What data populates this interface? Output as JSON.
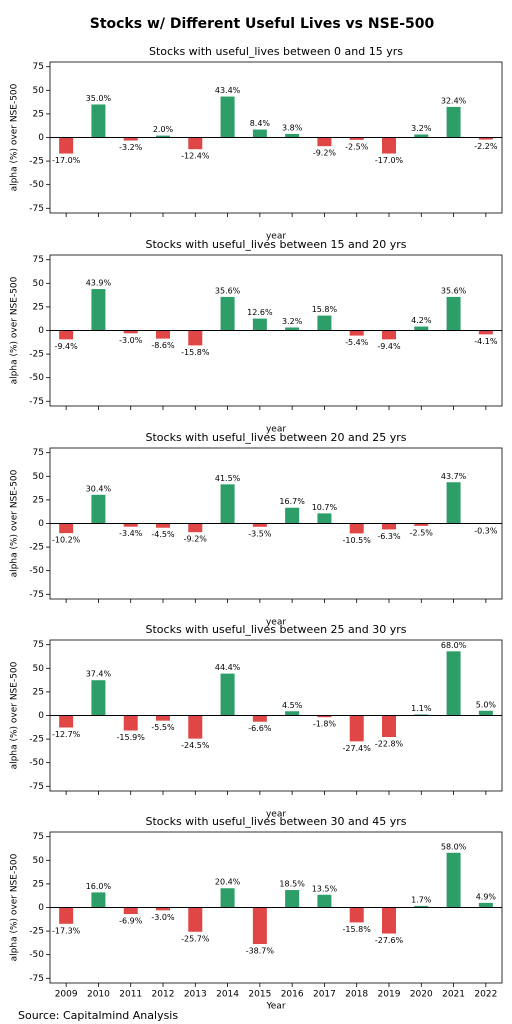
{
  "title": "Stocks w/ Different Useful Lives vs NSE-500",
  "source": "Source: Capitalmind Analysis",
  "chart_data": [
    {
      "type": "bar",
      "title": "Stocks with useful_lives between 0 and 15 yrs",
      "xlabel": "year",
      "ylabel": "alpha (%) over NSE-500",
      "categories": [
        null,
        null,
        null,
        null,
        null,
        null,
        null,
        null,
        null,
        null,
        null,
        null,
        null,
        null
      ],
      "values": [
        -17.0,
        35.0,
        -3.2,
        2.0,
        -12.4,
        43.4,
        8.4,
        3.8,
        -9.2,
        -2.5,
        -17.0,
        3.2,
        32.4,
        -2.2
      ],
      "value_labels": [
        "-17.0%",
        "35.0%",
        "-3.2%",
        "2.0%",
        "-12.4%",
        "43.4%",
        "8.4%",
        "3.8%",
        "-9.2%",
        "-2.5%",
        "-17.0%",
        "3.2%",
        "32.4%",
        "-2.2%"
      ],
      "positive_color": "#2e9e68",
      "negative_color": "#e04646",
      "ylim": [
        -80,
        80
      ],
      "yticks": [
        -75,
        -50,
        -25,
        0,
        25,
        50,
        75
      ]
    },
    {
      "type": "bar",
      "title": "Stocks with useful_lives between 15 and 20 yrs",
      "xlabel": "year",
      "ylabel": "alpha (%) over NSE-500",
      "categories": [
        null,
        null,
        null,
        null,
        null,
        null,
        null,
        null,
        null,
        null,
        null,
        null,
        null,
        null
      ],
      "values": [
        -9.4,
        43.9,
        -3.0,
        -8.6,
        -15.8,
        35.6,
        12.6,
        3.2,
        15.8,
        -5.4,
        -9.4,
        4.2,
        35.6,
        -4.1
      ],
      "value_labels": [
        "-9.4%",
        "43.9%",
        "-3.0%",
        "-8.6%",
        "-15.8%",
        "35.6%",
        "12.6%",
        "3.2%",
        "15.8%",
        "-5.4%",
        "-9.4%",
        "4.2%",
        "35.6%",
        "-4.1%"
      ],
      "positive_color": "#2e9e68",
      "negative_color": "#e04646",
      "ylim": [
        -80,
        80
      ],
      "yticks": [
        -75,
        -50,
        -25,
        0,
        25,
        50,
        75
      ]
    },
    {
      "type": "bar",
      "title": "Stocks with useful_lives between 20 and 25 yrs",
      "xlabel": "year",
      "ylabel": "alpha (%) over NSE-500",
      "categories": [
        null,
        null,
        null,
        null,
        null,
        null,
        null,
        null,
        null,
        null,
        null,
        null,
        null,
        null
      ],
      "values": [
        -10.2,
        30.4,
        -3.4,
        -4.5,
        -9.2,
        41.5,
        -3.5,
        16.7,
        10.7,
        -10.5,
        -6.3,
        -2.5,
        43.7,
        -0.3
      ],
      "value_labels": [
        "-10.2%",
        "30.4%",
        "-3.4%",
        "-4.5%",
        "-9.2%",
        "41.5%",
        "-3.5%",
        "16.7%",
        "10.7%",
        "-10.5%",
        "-6.3%",
        "-2.5%",
        "43.7%",
        "-0.3%"
      ],
      "positive_color": "#2e9e68",
      "negative_color": "#e04646",
      "ylim": [
        -80,
        80
      ],
      "yticks": [
        -75,
        -50,
        -25,
        0,
        25,
        50,
        75
      ]
    },
    {
      "type": "bar",
      "title": "Stocks with useful_lives between 25 and 30 yrs",
      "xlabel": "year",
      "ylabel": "alpha (%) over NSE-500",
      "categories": [
        null,
        null,
        null,
        null,
        null,
        null,
        null,
        null,
        null,
        null,
        null,
        null,
        null,
        null
      ],
      "values": [
        -12.7,
        37.4,
        -15.9,
        -5.5,
        -24.5,
        44.4,
        -6.6,
        4.5,
        -1.8,
        -27.4,
        -22.8,
        1.1,
        68.0,
        5.0
      ],
      "value_labels": [
        "-12.7%",
        "37.4%",
        "-15.9%",
        "-5.5%",
        "-24.5%",
        "44.4%",
        "-6.6%",
        "4.5%",
        "-1.8%",
        "-27.4%",
        "-22.8%",
        "1.1%",
        "68.0%",
        "5.0%"
      ],
      "positive_color": "#2e9e68",
      "negative_color": "#e04646",
      "ylim": [
        -80,
        80
      ],
      "yticks": [
        -75,
        -50,
        -25,
        0,
        25,
        50,
        75
      ]
    },
    {
      "type": "bar",
      "title": "Stocks with useful_lives between 30 and 45 yrs",
      "xlabel": "Year",
      "ylabel": "alpha (%) over NSE-500",
      "categories": [
        "2009",
        "2010",
        "2011",
        "2012",
        "2013",
        "2014",
        "2015",
        "2016",
        "2017",
        "2018",
        "2019",
        "2020",
        "2021",
        "2022"
      ],
      "values": [
        -17.3,
        16.0,
        -6.9,
        -3.0,
        -25.7,
        20.4,
        -38.7,
        18.5,
        13.5,
        -15.8,
        -27.6,
        1.7,
        58.0,
        4.9
      ],
      "value_labels": [
        "-17.3%",
        "16.0%",
        "-6.9%",
        "-3.0%",
        "-25.7%",
        "20.4%",
        "-38.7%",
        "18.5%",
        "13.5%",
        "-15.8%",
        "-27.6%",
        "1.7%",
        "58.0%",
        "4.9%"
      ],
      "positive_color": "#2e9e68",
      "negative_color": "#e04646",
      "ylim": [
        -80,
        80
      ],
      "yticks": [
        -75,
        -50,
        -25,
        0,
        25,
        50,
        75
      ]
    }
  ]
}
